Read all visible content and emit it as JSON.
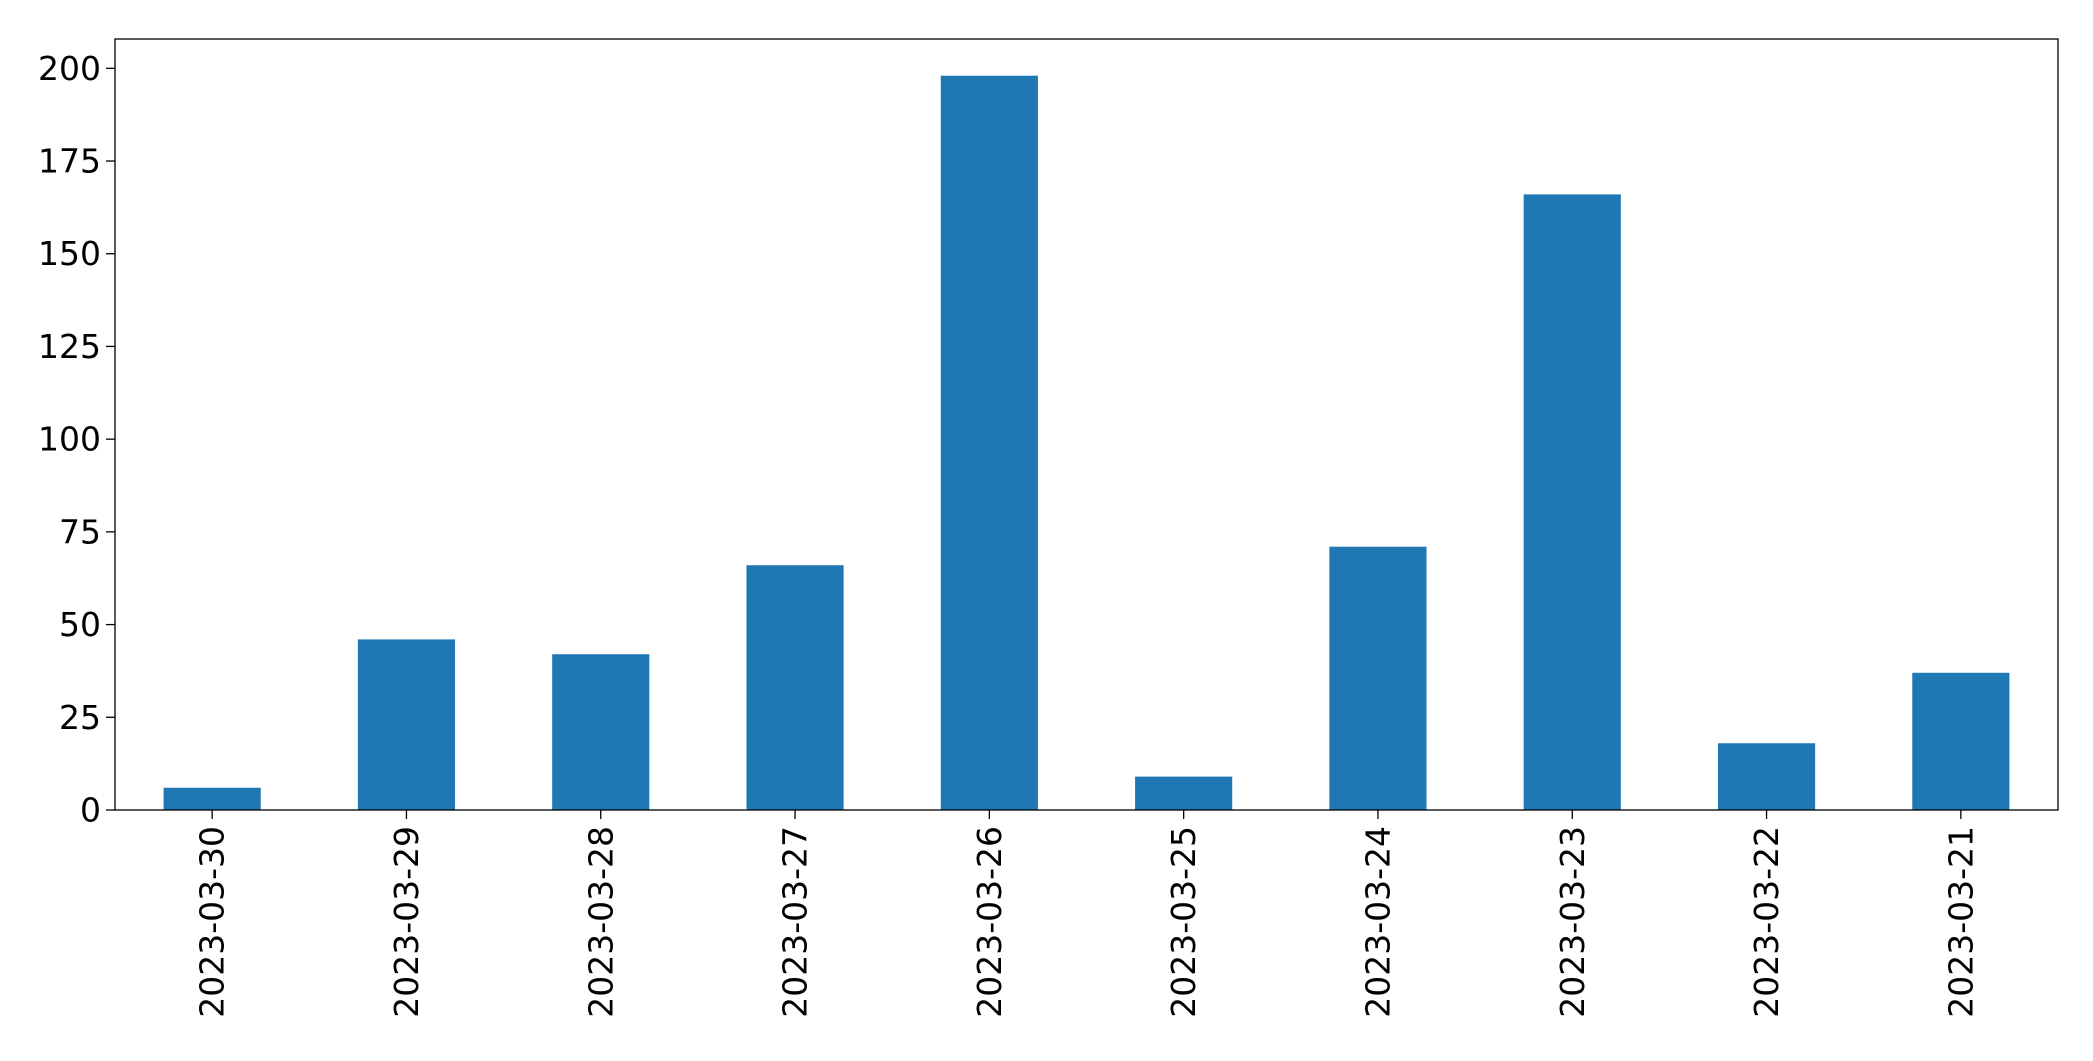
{
  "chart_data": {
    "type": "bar",
    "categories": [
      "2023-03-30",
      "2023-03-29",
      "2023-03-28",
      "2023-03-27",
      "2023-03-26",
      "2023-03-25",
      "2023-03-24",
      "2023-03-23",
      "2023-03-22",
      "2023-03-21"
    ],
    "values": [
      6,
      46,
      42,
      66,
      198,
      9,
      71,
      166,
      18,
      37
    ],
    "title": "",
    "xlabel": "",
    "ylabel": "",
    "ylim": [
      0,
      207.9
    ],
    "yticks": [
      0,
      25,
      50,
      75,
      100,
      125,
      150,
      175,
      200
    ],
    "grid": false,
    "legend": "none",
    "bar_color": "#1f77b4",
    "axis_color": "#000000"
  }
}
